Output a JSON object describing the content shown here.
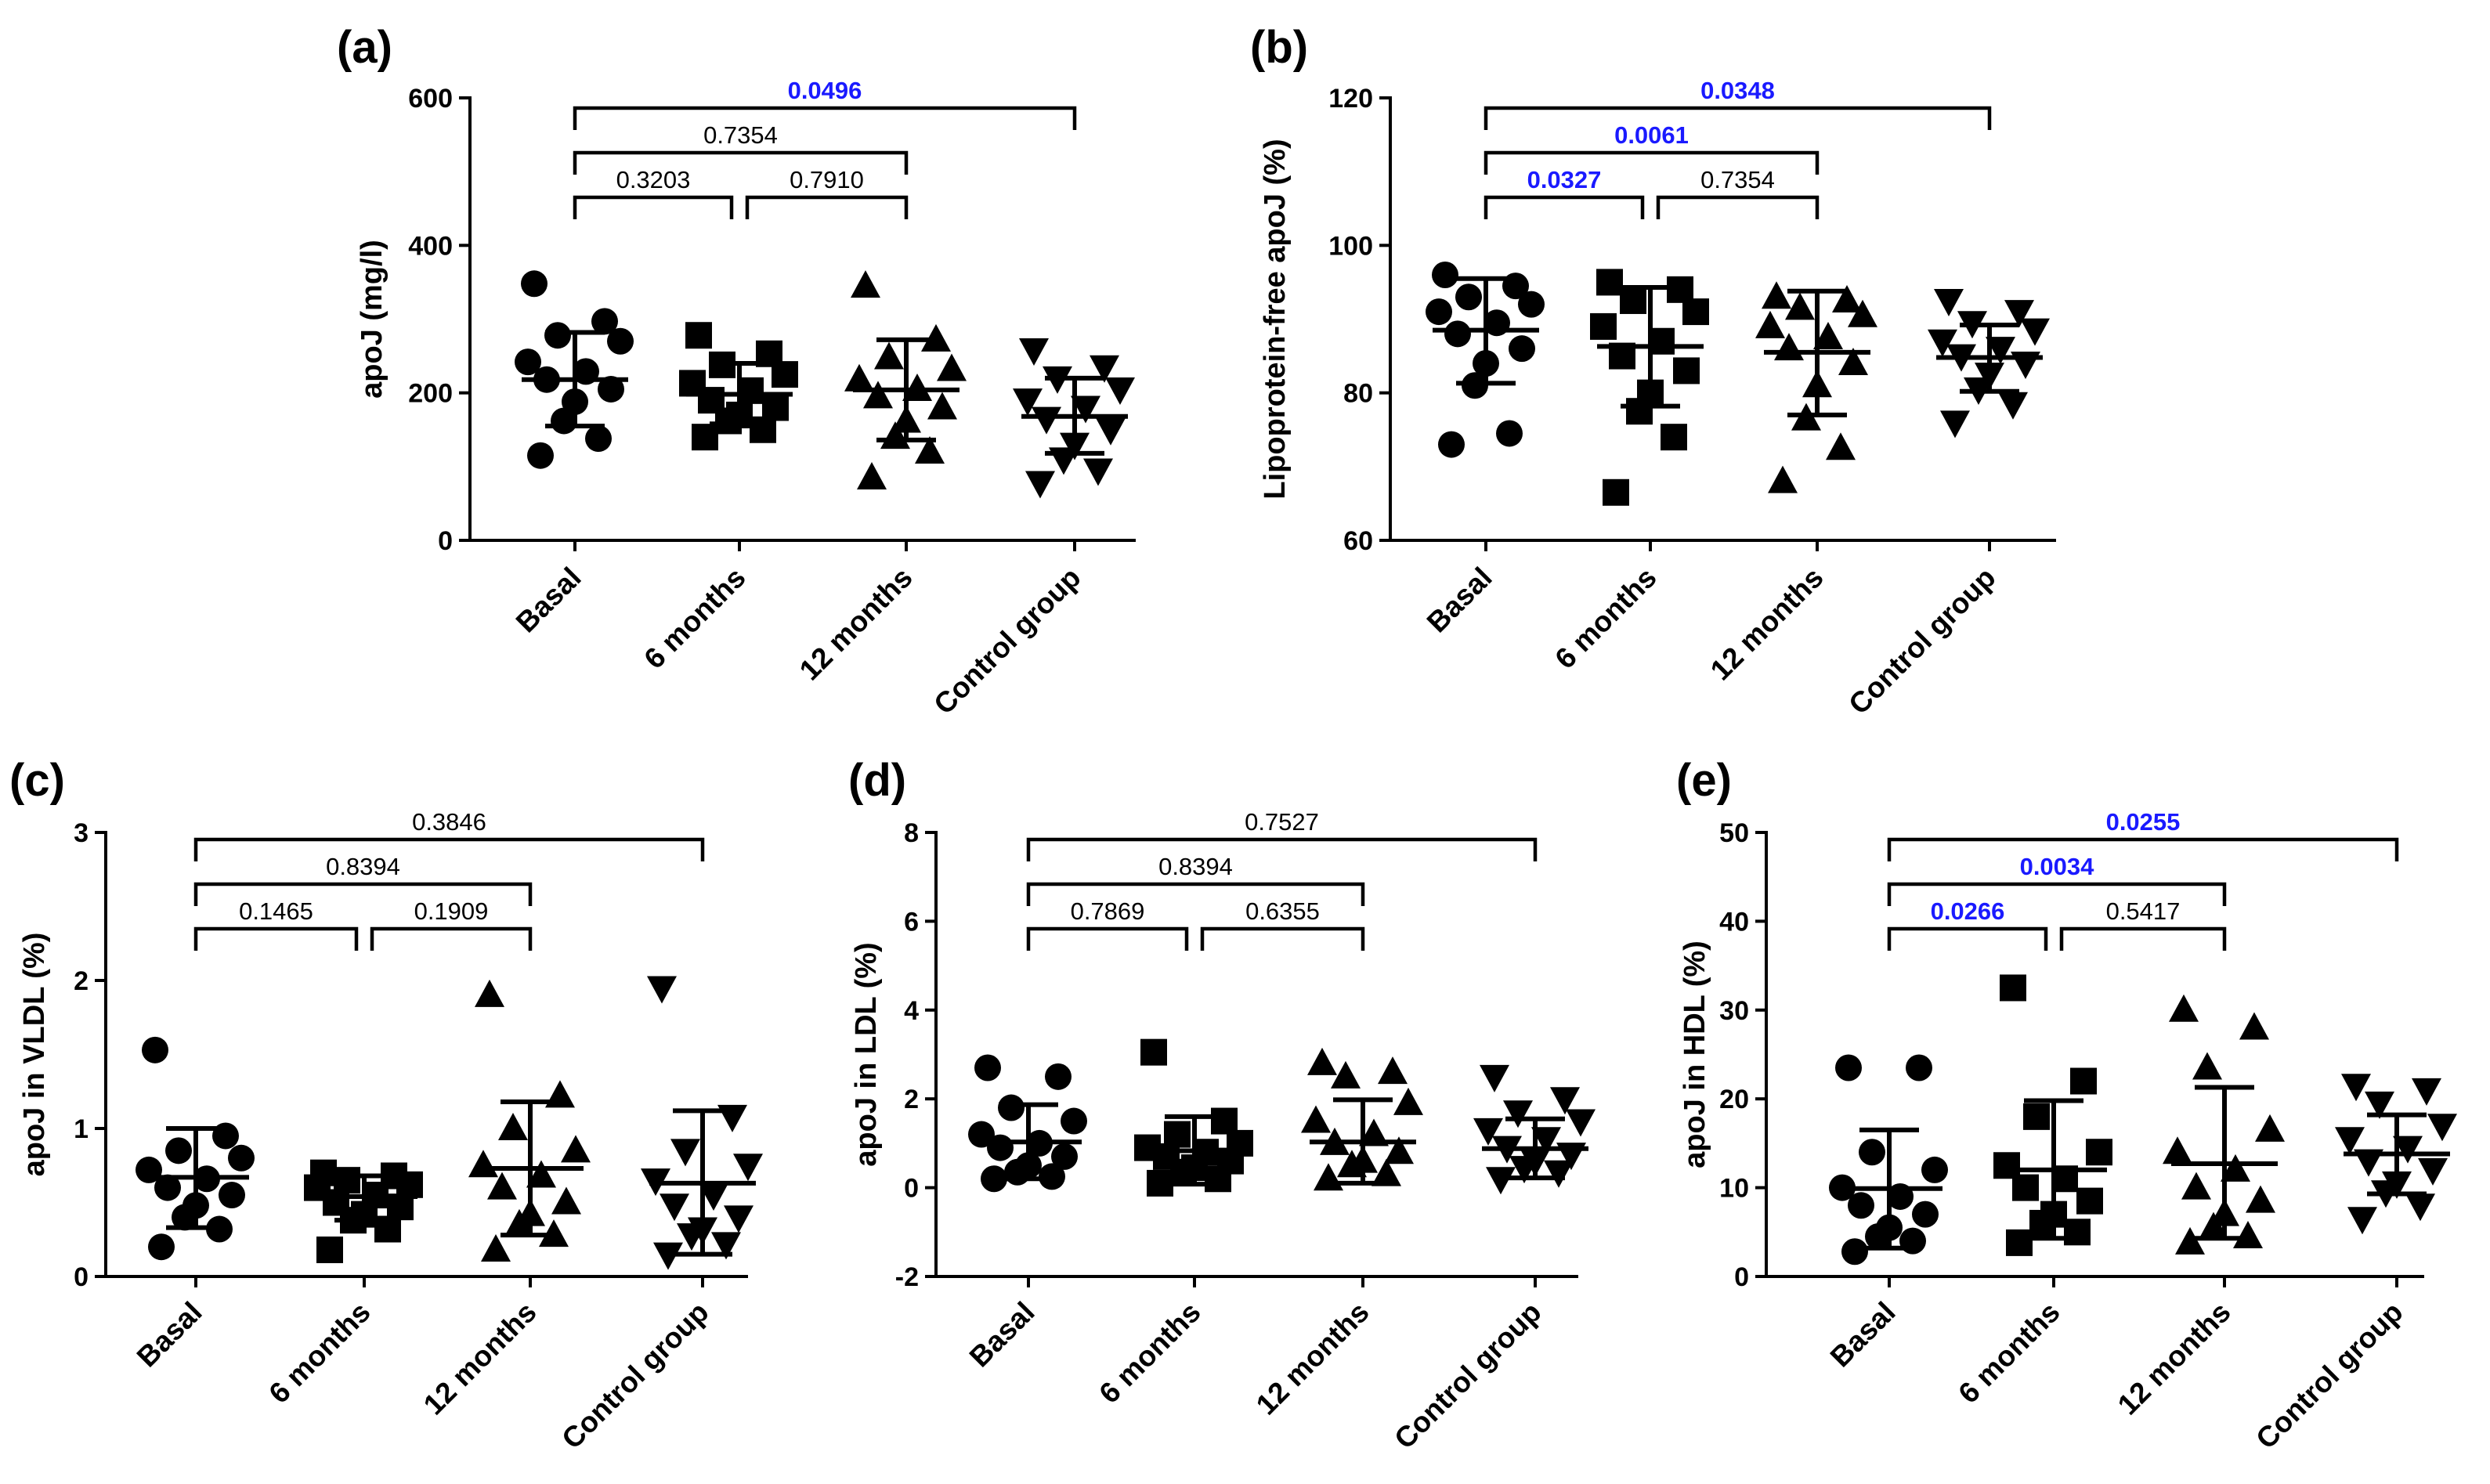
{
  "colors": {
    "significant_pvalue": "#1a1aff",
    "default": "#000000"
  },
  "chart_data": [
    {
      "panel": "(a)",
      "type": "scatter",
      "ylabel": "apoJ (mg/l)",
      "ylim": [
        0,
        600
      ],
      "yticks": [
        0,
        200,
        400,
        600
      ],
      "categories": [
        "Basal",
        "6 months",
        "12 months",
        "Control group"
      ],
      "markers": [
        "circle",
        "square",
        "triangle-up",
        "triangle-down"
      ],
      "series": [
        {
          "name": "Basal",
          "mean": 218,
          "sd_low": 155,
          "sd_high": 282,
          "values": [
            348,
            297,
            278,
            270,
            242,
            229,
            218,
            205,
            188,
            162,
            138,
            115
          ]
        },
        {
          "name": "6 months",
          "mean": 198,
          "sd_low": 158,
          "sd_high": 240,
          "values": [
            278,
            253,
            238,
            225,
            213,
            203,
            190,
            180,
            170,
            162,
            150,
            140
          ]
        },
        {
          "name": "12 months",
          "mean": 204,
          "sd_low": 136,
          "sd_high": 272,
          "values": [
            345,
            272,
            248,
            232,
            218,
            205,
            195,
            180,
            162,
            140,
            120,
            85
          ]
        },
        {
          "name": "Control group",
          "mean": 168,
          "sd_low": 118,
          "sd_high": 220,
          "values": [
            258,
            235,
            220,
            205,
            190,
            180,
            165,
            150,
            130,
            110,
            95,
            78
          ]
        }
      ],
      "comparisons": [
        {
          "from": 0,
          "to": 1,
          "level": 1,
          "p": "0.3203",
          "significant": false
        },
        {
          "from": 1,
          "to": 2,
          "level": 1,
          "p": "0.7910",
          "significant": false
        },
        {
          "from": 0,
          "to": 2,
          "level": 2,
          "p": "0.7354",
          "significant": false
        },
        {
          "from": 0,
          "to": 3,
          "level": 3,
          "p": "0.0496",
          "significant": true
        }
      ]
    },
    {
      "panel": "(b)",
      "type": "scatter",
      "ylabel": "Lipoprotein-free apoJ (%)",
      "ylim": [
        60,
        120
      ],
      "yticks": [
        60,
        80,
        100,
        120
      ],
      "categories": [
        "Basal",
        "6 months",
        "12 months",
        "Control group"
      ],
      "markers": [
        "circle",
        "square",
        "triangle-up",
        "triangle-down"
      ],
      "series": [
        {
          "name": "Basal",
          "mean": 88.5,
          "sd_low": 81.3,
          "sd_high": 95.5,
          "values": [
            96,
            94.5,
            93,
            92,
            91,
            89.5,
            88,
            86,
            84,
            81,
            74.5,
            73
          ]
        },
        {
          "name": "6 months",
          "mean": 86.3,
          "sd_low": 78.2,
          "sd_high": 94.3,
          "values": [
            95,
            94,
            92.5,
            91,
            89,
            87,
            85,
            83,
            80,
            77.5,
            74,
            66.5
          ]
        },
        {
          "name": "12 months",
          "mean": 85.5,
          "sd_low": 77,
          "sd_high": 93.8,
          "values": [
            93,
            92.5,
            91.5,
            90.5,
            89,
            87.5,
            86,
            84,
            81,
            76.5,
            72.5,
            68
          ]
        },
        {
          "name": "Control group",
          "mean": 84.8,
          "sd_low": 80.2,
          "sd_high": 89.2,
          "values": [
            92.5,
            91,
            89.5,
            88.5,
            87,
            86,
            85,
            84,
            82.5,
            80.5,
            78.5,
            76
          ]
        }
      ],
      "comparisons": [
        {
          "from": 0,
          "to": 1,
          "level": 1,
          "p": "0.0327",
          "significant": true
        },
        {
          "from": 1,
          "to": 2,
          "level": 1,
          "p": "0.7354",
          "significant": false
        },
        {
          "from": 0,
          "to": 2,
          "level": 2,
          "p": "0.0061",
          "significant": true
        },
        {
          "from": 0,
          "to": 3,
          "level": 3,
          "p": "0.0348",
          "significant": true
        }
      ]
    },
    {
      "panel": "(c)",
      "type": "scatter",
      "ylabel": "apoJ in VLDL (%)",
      "ylim": [
        0,
        3
      ],
      "yticks": [
        0,
        1,
        2,
        3
      ],
      "categories": [
        "Basal",
        "6 months",
        "12 months",
        "Control group"
      ],
      "markers": [
        "circle",
        "square",
        "triangle-up",
        "triangle-down"
      ],
      "series": [
        {
          "name": "Basal",
          "mean": 0.67,
          "sd_low": 0.33,
          "sd_high": 1.0,
          "values": [
            1.53,
            0.95,
            0.85,
            0.8,
            0.72,
            0.66,
            0.6,
            0.55,
            0.48,
            0.4,
            0.32,
            0.2
          ]
        },
        {
          "name": "6 months",
          "mean": 0.54,
          "sd_low": 0.38,
          "sd_high": 0.68,
          "values": [
            0.7,
            0.68,
            0.65,
            0.62,
            0.6,
            0.55,
            0.5,
            0.47,
            0.42,
            0.38,
            0.32,
            0.18
          ]
        },
        {
          "name": "12 months",
          "mean": 0.73,
          "sd_low": 0.28,
          "sd_high": 1.18,
          "values": [
            1.9,
            1.22,
            1.0,
            0.85,
            0.75,
            0.68,
            0.6,
            0.5,
            0.42,
            0.35,
            0.28,
            0.18
          ]
        },
        {
          "name": "Control group",
          "mean": 0.63,
          "sd_low": 0.15,
          "sd_high": 1.12,
          "values": [
            1.95,
            1.08,
            0.85,
            0.75,
            0.65,
            0.55,
            0.48,
            0.4,
            0.32,
            0.28,
            0.22,
            0.15
          ]
        }
      ],
      "comparisons": [
        {
          "from": 0,
          "to": 1,
          "level": 1,
          "p": "0.1465",
          "significant": false
        },
        {
          "from": 1,
          "to": 2,
          "level": 1,
          "p": "0.1909",
          "significant": false
        },
        {
          "from": 0,
          "to": 2,
          "level": 2,
          "p": "0.8394",
          "significant": false
        },
        {
          "from": 0,
          "to": 3,
          "level": 3,
          "p": "0.3846",
          "significant": false
        }
      ]
    },
    {
      "panel": "(d)",
      "type": "scatter",
      "ylabel": "apoJ in LDL (%)",
      "ylim": [
        -2,
        8
      ],
      "yticks": [
        -2,
        0,
        2,
        4,
        6,
        8
      ],
      "categories": [
        "Basal",
        "6 months",
        "12 months",
        "Control group"
      ],
      "markers": [
        "circle",
        "square",
        "triangle-up",
        "triangle-down"
      ],
      "series": [
        {
          "name": "Basal",
          "mean": 1.03,
          "sd_low": 0.2,
          "sd_high": 1.87,
          "values": [
            2.7,
            2.5,
            1.8,
            1.5,
            1.2,
            1.0,
            0.9,
            0.7,
            0.5,
            0.35,
            0.25,
            0.2
          ]
        },
        {
          "name": "6 months",
          "mean": 0.83,
          "sd_low": 0.08,
          "sd_high": 1.6,
          "values": [
            3.05,
            1.5,
            1.2,
            1.0,
            0.9,
            0.8,
            0.7,
            0.6,
            0.45,
            0.35,
            0.2,
            0.1
          ]
        },
        {
          "name": "12 months",
          "mean": 1.03,
          "sd_low": 0.1,
          "sd_high": 1.98,
          "values": [
            2.8,
            2.6,
            2.5,
            1.9,
            1.5,
            1.2,
            1.0,
            0.8,
            0.6,
            0.5,
            0.3,
            0.2
          ]
        },
        {
          "name": "Control group",
          "mean": 0.88,
          "sd_low": 0.22,
          "sd_high": 1.55,
          "values": [
            2.5,
            2.0,
            1.7,
            1.5,
            1.3,
            1.1,
            0.9,
            0.75,
            0.6,
            0.45,
            0.35,
            0.2
          ]
        }
      ],
      "comparisons": [
        {
          "from": 0,
          "to": 1,
          "level": 1,
          "p": "0.7869",
          "significant": false
        },
        {
          "from": 1,
          "to": 2,
          "level": 1,
          "p": "0.6355",
          "significant": false
        },
        {
          "from": 0,
          "to": 2,
          "level": 2,
          "p": "0.8394",
          "significant": false
        },
        {
          "from": 0,
          "to": 3,
          "level": 3,
          "p": "0.7527",
          "significant": false
        }
      ]
    },
    {
      "panel": "(e)",
      "type": "scatter",
      "ylabel": "apoJ in HDL (%)",
      "ylim": [
        0,
        50
      ],
      "yticks": [
        0,
        10,
        20,
        30,
        40,
        50
      ],
      "categories": [
        "Basal",
        "6 months",
        "12 months",
        "Control group"
      ],
      "markers": [
        "circle",
        "square",
        "triangle-up",
        "triangle-down"
      ],
      "series": [
        {
          "name": "Basal",
          "mean": 9.9,
          "sd_low": 3.2,
          "sd_high": 16.5,
          "values": [
            23.5,
            23.5,
            14,
            12,
            10,
            9,
            8,
            7,
            5.5,
            4.5,
            4,
            2.8
          ]
        },
        {
          "name": "6 months",
          "mean": 12,
          "sd_low": 4.3,
          "sd_high": 19.8,
          "values": [
            32.5,
            22,
            18,
            14,
            12.5,
            11,
            10,
            8.5,
            7,
            6,
            5,
            3.8
          ]
        },
        {
          "name": "12 months",
          "mean": 12.7,
          "sd_low": 4.3,
          "sd_high": 21.3,
          "values": [
            30,
            28,
            23.5,
            16.5,
            14,
            12,
            10,
            8.5,
            7,
            5.5,
            4.5,
            3.8
          ]
        },
        {
          "name": "Control group",
          "mean": 13.8,
          "sd_low": 9.3,
          "sd_high": 18.2,
          "values": [
            21.5,
            21,
            19.5,
            17,
            15.5,
            14.5,
            13,
            12,
            10.5,
            9.5,
            8,
            6.5
          ]
        }
      ],
      "comparisons": [
        {
          "from": 0,
          "to": 1,
          "level": 1,
          "p": "0.0266",
          "significant": true
        },
        {
          "from": 1,
          "to": 2,
          "level": 1,
          "p": "0.5417",
          "significant": false
        },
        {
          "from": 0,
          "to": 2,
          "level": 2,
          "p": "0.0034",
          "significant": true
        },
        {
          "from": 0,
          "to": 3,
          "level": 3,
          "p": "0.0255",
          "significant": true
        }
      ]
    }
  ]
}
